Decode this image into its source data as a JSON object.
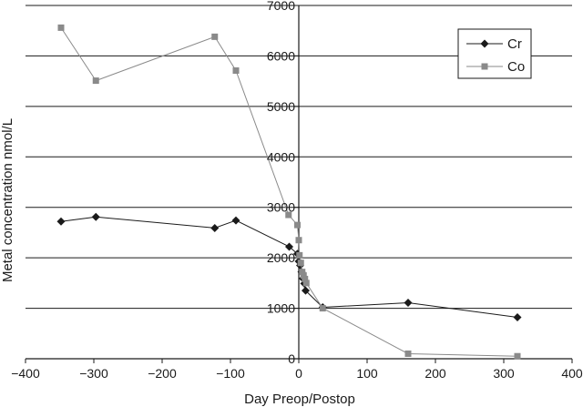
{
  "chart_data": {
    "type": "line",
    "title": "",
    "xlabel": "Day Preop/Postop",
    "ylabel": "Metal concentration nmol/L",
    "xlim": [
      -400,
      400
    ],
    "ylim": [
      0,
      7000
    ],
    "x_ticks": [
      -400,
      -300,
      -200,
      -100,
      0,
      100,
      200,
      300,
      400
    ],
    "y_ticks": [
      0,
      1000,
      2000,
      3000,
      4000,
      5000,
      6000,
      7000
    ],
    "grid": "horizontal",
    "y_axis_position": "x=0",
    "legend": "top-right",
    "series": [
      {
        "name": "Cr",
        "marker": "diamond",
        "color": "#1a1a1a",
        "points": [
          [
            -348,
            2720
          ],
          [
            -297,
            2810
          ],
          [
            -123,
            2590
          ],
          [
            -92,
            2740
          ],
          [
            -14,
            2220
          ],
          [
            -2,
            2080
          ],
          [
            0,
            1930
          ],
          [
            2,
            1850
          ],
          [
            4,
            1720
          ],
          [
            6,
            1590
          ],
          [
            8,
            1490
          ],
          [
            10,
            1350
          ],
          [
            35,
            1020
          ],
          [
            160,
            1110
          ],
          [
            320,
            820
          ]
        ]
      },
      {
        "name": "Co",
        "marker": "square",
        "color": "#8a8a8a",
        "points": [
          [
            -348,
            6560
          ],
          [
            -297,
            5510
          ],
          [
            -123,
            6380
          ],
          [
            -92,
            5710
          ],
          [
            -15,
            2850
          ],
          [
            -2,
            2650
          ],
          [
            0,
            2350
          ],
          [
            1,
            2050
          ],
          [
            3,
            1900
          ],
          [
            5,
            1720
          ],
          [
            7,
            1650
          ],
          [
            9,
            1580
          ],
          [
            11,
            1500
          ],
          [
            35,
            1000
          ],
          [
            160,
            100
          ],
          [
            320,
            50
          ]
        ]
      }
    ]
  }
}
